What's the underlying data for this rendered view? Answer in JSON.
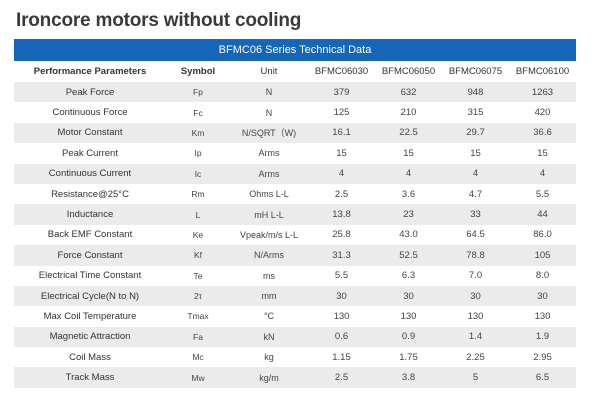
{
  "page": {
    "title": "Ironcore motors without cooling"
  },
  "table": {
    "caption": "BFMC06 Series Technical Data",
    "columns": [
      "Performance Parameters",
      "Symbol",
      "Unit",
      "BFMC06030",
      "BFMC06050",
      "BFMC06075",
      "BFMC06100"
    ],
    "rows": [
      {
        "param": "Peak Force",
        "symbol": "Fp",
        "unit": "N",
        "values": [
          "379",
          "632",
          "948",
          "1263"
        ]
      },
      {
        "param": "Continuous Force",
        "symbol": "Fc",
        "unit": "N",
        "values": [
          "125",
          "210",
          "315",
          "420"
        ]
      },
      {
        "param": "Motor Constant",
        "symbol": "Km",
        "unit": "N/SQRT（W)",
        "values": [
          "16.1",
          "22.5",
          "29.7",
          "36.6"
        ]
      },
      {
        "param": "Peak Current",
        "symbol": "Ip",
        "unit": "Arms",
        "values": [
          "15",
          "15",
          "15",
          "15"
        ]
      },
      {
        "param": "Continuous Current",
        "symbol": "Ic",
        "unit": "Arms",
        "values": [
          "4",
          "4",
          "4",
          "4"
        ]
      },
      {
        "param": "Resistance@25°C",
        "symbol": "Rm",
        "unit": "Ohms L-L",
        "values": [
          "2.5",
          "3.6",
          "4.7",
          "5.5"
        ]
      },
      {
        "param": "Inductance",
        "symbol": "L",
        "unit": "mH L-L",
        "values": [
          "13.8",
          "23",
          "33",
          "44"
        ]
      },
      {
        "param": "Back EMF Constant",
        "symbol": "Ke",
        "unit": "Vpeak/m/s L-L",
        "values": [
          "25.8",
          "43.0",
          "64.5",
          "86.0"
        ]
      },
      {
        "param": "Force Constant",
        "symbol": "Kf",
        "unit": "N/Arms",
        "values": [
          "31.3",
          "52.5",
          "78.8",
          "105"
        ]
      },
      {
        "param": "Electrical Time Constant",
        "symbol": "Te",
        "unit": "ms",
        "values": [
          "5.5",
          "6.3",
          "7.0",
          "8.0"
        ]
      },
      {
        "param": "Electrical Cycle(N to N)",
        "symbol": "2τ",
        "unit": "mm",
        "values": [
          "30",
          "30",
          "30",
          "30"
        ]
      },
      {
        "param": "Max Coil Temperature",
        "symbol": "Tmax",
        "unit": "°C",
        "values": [
          "130",
          "130",
          "130",
          "130"
        ]
      },
      {
        "param": "Magnetic Attraction",
        "symbol": "Fa",
        "unit": "kN",
        "values": [
          "0.6",
          "0.9",
          "1.4",
          "1.9"
        ]
      },
      {
        "param": "Coil Mass",
        "symbol": "Mc",
        "unit": "kg",
        "values": [
          "1.15",
          "1.75",
          "2.25",
          "2.95"
        ]
      },
      {
        "param": "Track Mass",
        "symbol": "Mw",
        "unit": "kg/m",
        "values": [
          "2.5",
          "3.8",
          "5",
          "6.5"
        ]
      }
    ]
  },
  "colors": {
    "header_bg": "#1565b8",
    "stripe": "#ebebeb"
  }
}
